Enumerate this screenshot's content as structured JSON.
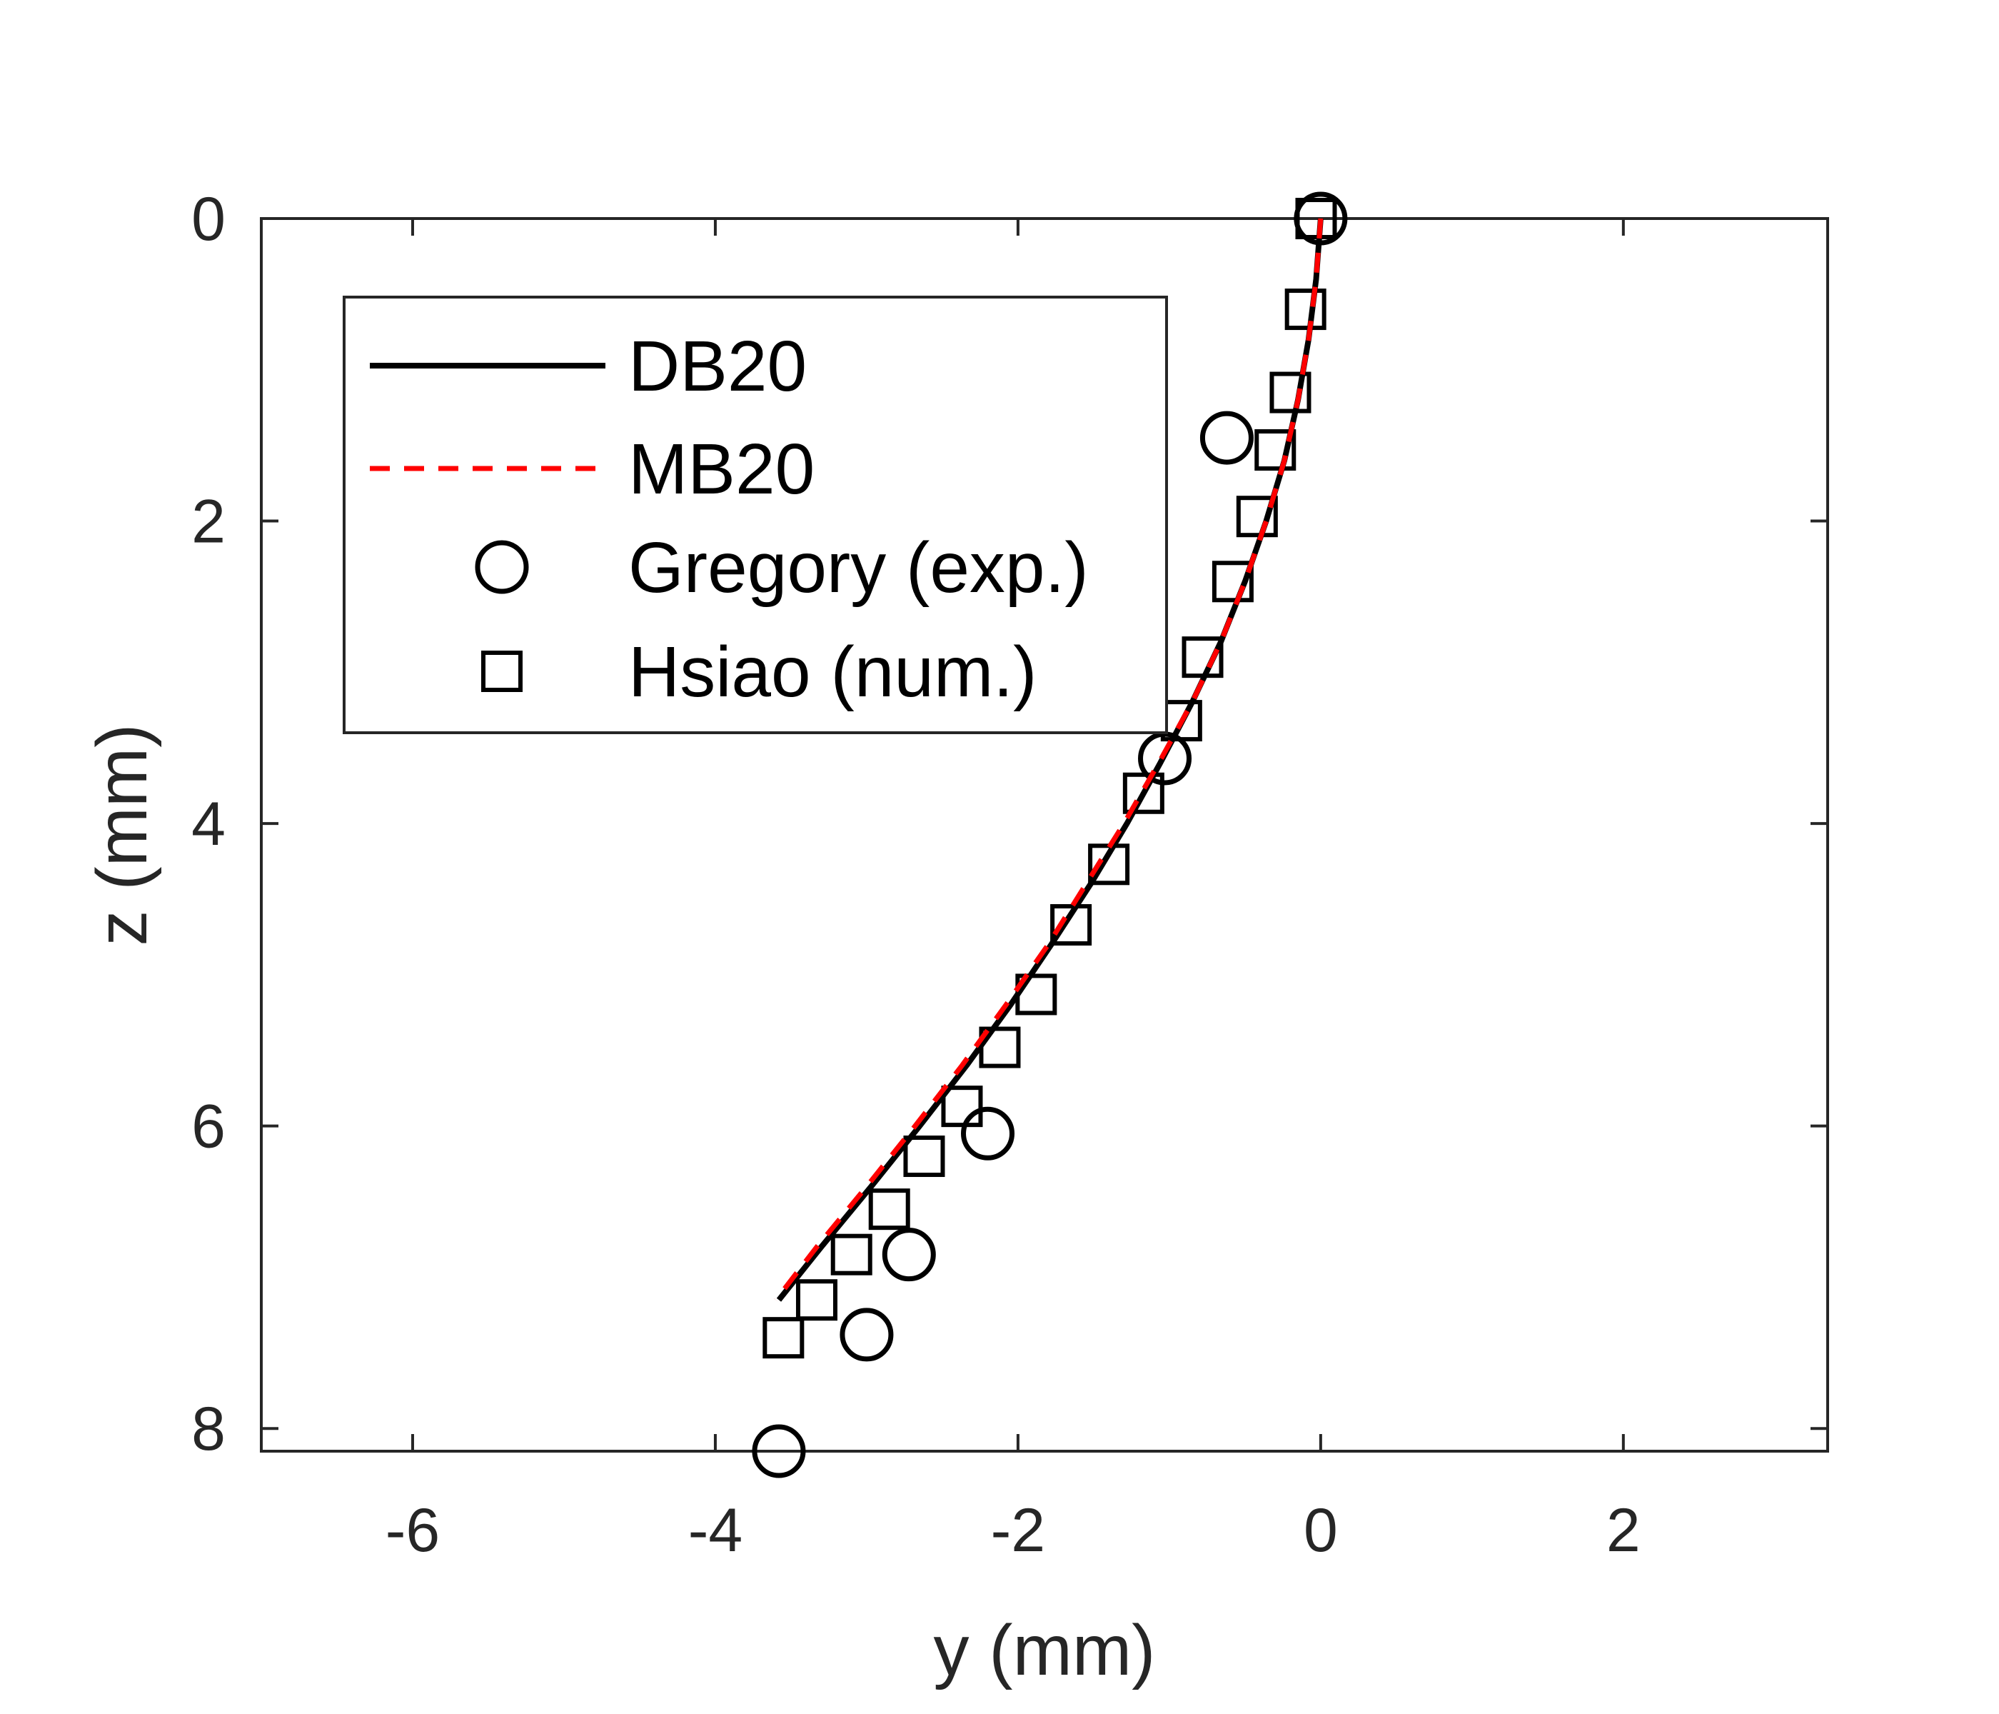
{
  "chart_data": {
    "type": "line",
    "title": "",
    "xlabel": "y (mm)",
    "ylabel": "z (mm)",
    "xlim": [
      -7,
      3.35
    ],
    "ylim": [
      8.15,
      0
    ],
    "y_axis_reversed": true,
    "grid": false,
    "box": true,
    "legend_position": "top-left",
    "xticks": [
      -6,
      -4,
      -2,
      0,
      2
    ],
    "yticks": [
      0,
      2,
      4,
      6,
      8
    ],
    "xtick_labels": [
      "-6",
      "-4",
      "-2",
      "0",
      "2"
    ],
    "ytick_labels": [
      "0",
      "2",
      "4",
      "6",
      "8"
    ],
    "series": [
      {
        "name": "DB20",
        "style": "solid-line",
        "color": "#000000",
        "x": [
          0.0,
          -0.03,
          -0.08,
          -0.15,
          -0.24,
          -0.36,
          -0.5,
          -0.66,
          -0.85,
          -1.06,
          -1.28,
          -1.52,
          -1.78,
          -2.05,
          -2.34,
          -2.65,
          -2.97,
          -3.3,
          -3.58
        ],
        "y": [
          0.0,
          0.4,
          0.8,
          1.2,
          1.6,
          2.0,
          2.4,
          2.8,
          3.2,
          3.6,
          4.0,
          4.4,
          4.8,
          5.2,
          5.6,
          6.0,
          6.4,
          6.8,
          7.15
        ]
      },
      {
        "name": "MB20",
        "style": "dashed-line",
        "color": "#ff0000",
        "x": [
          0.0,
          -0.03,
          -0.08,
          -0.15,
          -0.24,
          -0.36,
          -0.5,
          -0.66,
          -0.85,
          -1.07,
          -1.3,
          -1.55,
          -1.8,
          -2.08,
          -2.37,
          -2.68,
          -3.0,
          -3.33,
          -3.6
        ],
        "y": [
          0.0,
          0.4,
          0.8,
          1.2,
          1.6,
          2.0,
          2.4,
          2.8,
          3.2,
          3.6,
          4.0,
          4.4,
          4.8,
          5.2,
          5.6,
          6.0,
          6.4,
          6.8,
          7.15
        ]
      },
      {
        "name": "Gregory (exp.)",
        "style": "circle-markers",
        "color": "#000000",
        "x": [
          0.0,
          -0.62,
          -1.03,
          -2.2,
          -2.72,
          -3.0,
          -3.58
        ],
        "y": [
          0.0,
          1.45,
          3.57,
          6.05,
          6.85,
          7.38,
          8.15
        ]
      },
      {
        "name": "Hsiao (num.)",
        "style": "square-markers",
        "color": "#000000",
        "x": [
          -0.03,
          -0.1,
          -0.2,
          -0.3,
          -0.42,
          -0.58,
          -0.78,
          -0.92,
          -1.17,
          -1.4,
          -1.65,
          -1.88,
          -2.12,
          -2.37,
          -2.62,
          -2.85,
          -3.1,
          -3.33,
          -3.55
        ],
        "y": [
          0.0,
          0.6,
          1.15,
          1.53,
          1.97,
          2.4,
          2.9,
          3.32,
          3.8,
          4.27,
          4.67,
          5.13,
          5.48,
          5.87,
          6.2,
          6.55,
          6.85,
          7.15,
          7.4
        ]
      }
    ]
  }
}
